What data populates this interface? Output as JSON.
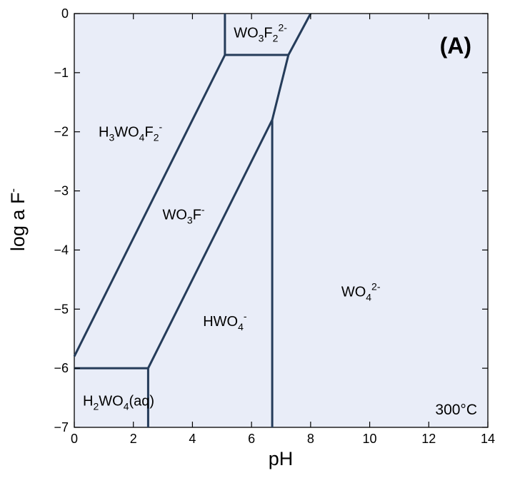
{
  "chart_data": {
    "type": "line",
    "title": "",
    "xlabel": "pH",
    "ylabel": "log a F",
    "ylabel_superscript": "-",
    "xlim": [
      0,
      14
    ],
    "ylim": [
      -7,
      0
    ],
    "xticks": [
      0,
      2,
      4,
      6,
      8,
      10,
      12,
      14
    ],
    "yticks": [
      0,
      -1,
      -2,
      -3,
      -4,
      -5,
      -6,
      -7
    ],
    "xtick_labels": [
      "0",
      "2",
      "4",
      "6",
      "8",
      "10",
      "12",
      "14"
    ],
    "ytick_labels": [
      "0",
      "−1",
      "−2",
      "−3",
      "−4",
      "−5",
      "−6",
      "−7"
    ],
    "grid": false,
    "plot_background": "#e9edf8",
    "line_color": "#253c5a",
    "panel_label": "(A)",
    "temperature_label": "300°C",
    "boundaries": [
      {
        "points": [
          [
            0,
            -5.8
          ],
          [
            5.1,
            -0.7
          ]
        ]
      },
      {
        "points": [
          [
            5.1,
            -0.7
          ],
          [
            5.1,
            0
          ]
        ]
      },
      {
        "points": [
          [
            5.1,
            -0.7
          ],
          [
            7.25,
            -0.7
          ]
        ]
      },
      {
        "points": [
          [
            7.25,
            -0.7
          ],
          [
            8.0,
            0
          ]
        ]
      },
      {
        "points": [
          [
            7.25,
            -0.7
          ],
          [
            6.7,
            -1.8
          ]
        ]
      },
      {
        "points": [
          [
            6.7,
            -1.8
          ],
          [
            2.5,
            -6.0
          ]
        ]
      },
      {
        "points": [
          [
            6.7,
            -1.8
          ],
          [
            6.7,
            -7
          ]
        ]
      },
      {
        "points": [
          [
            0,
            -6.0
          ],
          [
            2.5,
            -6.0
          ]
        ]
      },
      {
        "points": [
          [
            2.5,
            -6.0
          ],
          [
            2.5,
            -7
          ]
        ]
      }
    ],
    "fields": [
      {
        "name": "WO3F2 2-",
        "x": 6.3,
        "y": -0.32,
        "parts": [
          [
            "WO",
            ""
          ],
          [
            "3",
            "sub"
          ],
          [
            "F",
            ""
          ],
          [
            "2",
            "sub"
          ],
          [
            "2-",
            "sup"
          ]
        ]
      },
      {
        "name": "H3WO4F2 -",
        "x": 1.9,
        "y": -2.0,
        "parts": [
          [
            "H",
            ""
          ],
          [
            "3",
            "sub"
          ],
          [
            "WO",
            ""
          ],
          [
            "4",
            "sub"
          ],
          [
            "F",
            ""
          ],
          [
            "2",
            "sub"
          ],
          [
            "-",
            "sup"
          ]
        ]
      },
      {
        "name": "WO3F -",
        "x": 3.7,
        "y": -3.4,
        "parts": [
          [
            "WO",
            ""
          ],
          [
            "3",
            "sub"
          ],
          [
            "F",
            ""
          ],
          [
            "-",
            "sup"
          ]
        ]
      },
      {
        "name": "HWO4 -",
        "x": 5.1,
        "y": -5.2,
        "parts": [
          [
            "HWO",
            ""
          ],
          [
            "4",
            "sub"
          ],
          [
            "-",
            "sup"
          ]
        ]
      },
      {
        "name": "WO4 2-",
        "x": 9.7,
        "y": -4.7,
        "parts": [
          [
            "WO",
            ""
          ],
          [
            "4",
            "sub"
          ],
          [
            "2-",
            "sup"
          ]
        ]
      },
      {
        "name": "H2WO4(aq)",
        "x": 1.5,
        "y": -6.55,
        "parts": [
          [
            "H",
            ""
          ],
          [
            "2",
            "sub"
          ],
          [
            "WO",
            ""
          ],
          [
            "4",
            "sub"
          ],
          [
            "(aq)",
            ""
          ]
        ]
      }
    ]
  }
}
